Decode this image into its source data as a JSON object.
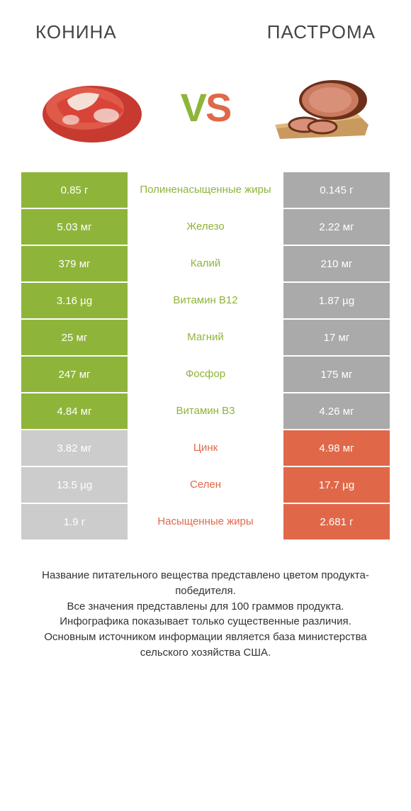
{
  "colors": {
    "green": "#8eb53a",
    "orange": "#e06849",
    "gray_dark": "#aaaaaa",
    "gray_light": "#cccccc",
    "text": "#333333"
  },
  "header": {
    "left_title": "КОНИНА",
    "right_title": "ПАСТРОМА"
  },
  "hero": {
    "vs_v": "V",
    "vs_s": "S"
  },
  "rows": [
    {
      "left": "0.85 г",
      "mid": "Полиненасыщенные жиры",
      "right": "0.145 г",
      "winner": "left"
    },
    {
      "left": "5.03 мг",
      "mid": "Железо",
      "right": "2.22 мг",
      "winner": "left"
    },
    {
      "left": "379 мг",
      "mid": "Калий",
      "right": "210 мг",
      "winner": "left"
    },
    {
      "left": "3.16 µg",
      "mid": "Витамин B12",
      "right": "1.87 µg",
      "winner": "left"
    },
    {
      "left": "25 мг",
      "mid": "Магний",
      "right": "17 мг",
      "winner": "left"
    },
    {
      "left": "247 мг",
      "mid": "Фосфор",
      "right": "175 мг",
      "winner": "left"
    },
    {
      "left": "4.84 мг",
      "mid": "Витамин B3",
      "right": "4.26 мг",
      "winner": "left"
    },
    {
      "left": "3.82 мг",
      "mid": "Цинк",
      "right": "4.98 мг",
      "winner": "right"
    },
    {
      "left": "13.5 µg",
      "mid": "Селен",
      "right": "17.7 µg",
      "winner": "right"
    },
    {
      "left": "1.9 г",
      "mid": "Насыщенные жиры",
      "right": "2.681 г",
      "winner": "right"
    }
  ],
  "footer": {
    "line1": "Название питательного вещества представлено цветом продукта-победителя.",
    "line2": "Все значения представлены для 100 граммов продукта.",
    "line3": "Инфографика показывает только существенные различия.",
    "line4": "Основным источником информации является база министерства сельского хозяйства США."
  }
}
